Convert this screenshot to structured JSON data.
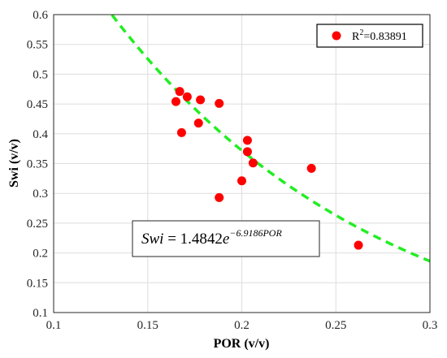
{
  "chart_data": {
    "type": "scatter",
    "xlabel": "POR (v/v)",
    "ylabel": "Swi (v/v)",
    "xlim": [
      0.1,
      0.3
    ],
    "ylim": [
      0.1,
      0.6
    ],
    "xticks": [
      "0.1",
      "0.15",
      "0.2",
      "0.25",
      "0.3"
    ],
    "yticks": [
      "0.1",
      "0.15",
      "0.2",
      "0.25",
      "0.3",
      "0.35",
      "0.4",
      "0.45",
      "0.5",
      "0.55",
      "0.6"
    ],
    "grid": true,
    "legend": {
      "placement": "top-right",
      "label_prefix": "R",
      "label_sup": "2",
      "label_suffix": "=0.83891"
    },
    "points": {
      "color": "#ff0000",
      "x": [
        0.165,
        0.167,
        0.168,
        0.171,
        0.177,
        0.178,
        0.188,
        0.188,
        0.2,
        0.203,
        0.203,
        0.206,
        0.237,
        0.262
      ],
      "y": [
        0.454,
        0.471,
        0.402,
        0.462,
        0.418,
        0.457,
        0.451,
        0.293,
        0.321,
        0.389,
        0.37,
        0.351,
        0.342,
        0.213
      ]
    },
    "fit": {
      "color": "#22ee22",
      "style": "dashed",
      "a": 1.4842,
      "b": -6.9186,
      "equation_lhs": "Swi",
      "equation_eq": " = 1.4842",
      "equation_e": "e",
      "equation_exp": "−6.9186POR"
    }
  }
}
